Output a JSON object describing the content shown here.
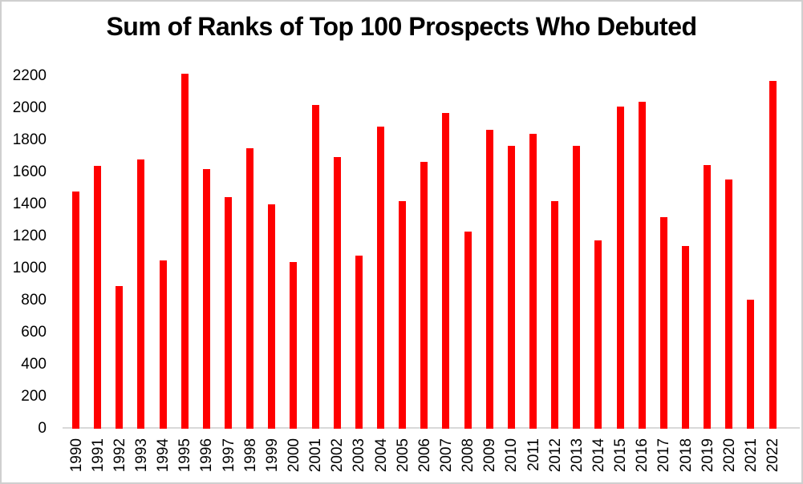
{
  "chart_data": {
    "type": "bar",
    "title": "Sum of Ranks of Top 100 Prospects Who Debuted",
    "xlabel": "",
    "ylabel": "",
    "categories": [
      "1990",
      "1991",
      "1992",
      "1993",
      "1994",
      "1995",
      "1996",
      "1997",
      "1998",
      "1999",
      "2000",
      "2001",
      "2002",
      "2003",
      "2004",
      "2005",
      "2006",
      "2007",
      "2008",
      "2009",
      "2010",
      "2011",
      "2012",
      "2013",
      "2014",
      "2015",
      "2016",
      "2017",
      "2018",
      "2019",
      "2020",
      "2021",
      "2022"
    ],
    "values": [
      1480,
      1640,
      890,
      1680,
      1050,
      2215,
      1620,
      1445,
      1750,
      1400,
      1040,
      2020,
      1695,
      1080,
      1885,
      1420,
      1665,
      1970,
      1230,
      1865,
      1765,
      1840,
      1420,
      1765,
      1175,
      2010,
      2040,
      1320,
      1140,
      1645,
      1555,
      805,
      2170
    ],
    "yticks": [
      0,
      200,
      400,
      600,
      800,
      1000,
      1200,
      1400,
      1600,
      1800,
      2000,
      2200
    ],
    "ylim": [
      0,
      2200
    ],
    "grid": false,
    "legend_position": "none",
    "bar_color": "#ff0000",
    "axis_line_color": "#d9d9d9",
    "text_color": "#000000"
  }
}
